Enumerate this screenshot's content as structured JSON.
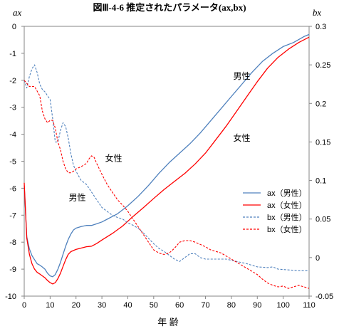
{
  "chart_data": {
    "type": "line",
    "title": "図Ⅲ-4-6 推定されたパラメータ(ax,bx)",
    "xlabel": "年 齢",
    "ylabel_left": "ax",
    "ylabel_right": "bx",
    "xlim": [
      0,
      110
    ],
    "ylim_left": [
      -10,
      0
    ],
    "ylim_right": [
      -0.05,
      0.3
    ],
    "x_ticks": [
      0,
      10,
      20,
      30,
      40,
      50,
      60,
      70,
      80,
      90,
      100,
      110
    ],
    "y_left_ticks": [
      0,
      -1,
      -2,
      -3,
      -4,
      -5,
      -6,
      -7,
      -8,
      -9,
      -10
    ],
    "y_right_ticks": [
      "0.3",
      "0.25",
      "0.2",
      "0.15",
      "0.1",
      "0.05",
      "0",
      "-0.05"
    ],
    "grid": false,
    "legend_position": "right",
    "series": [
      {
        "name": "ax（男性）",
        "axis": "left",
        "color": "#4f81bd",
        "dash": "solid",
        "points": [
          [
            0,
            -5.9
          ],
          [
            1,
            -7.8
          ],
          [
            2,
            -8.25
          ],
          [
            3,
            -8.5
          ],
          [
            4,
            -8.65
          ],
          [
            5,
            -8.8
          ],
          [
            6,
            -8.85
          ],
          [
            7,
            -8.92
          ],
          [
            8,
            -9.0
          ],
          [
            9,
            -9.15
          ],
          [
            10,
            -9.25
          ],
          [
            11,
            -9.28
          ],
          [
            12,
            -9.2
          ],
          [
            13,
            -9.0
          ],
          [
            14,
            -8.75
          ],
          [
            15,
            -8.45
          ],
          [
            16,
            -8.15
          ],
          [
            17,
            -7.9
          ],
          [
            18,
            -7.7
          ],
          [
            19,
            -7.55
          ],
          [
            20,
            -7.48
          ],
          [
            22,
            -7.42
          ],
          [
            24,
            -7.38
          ],
          [
            26,
            -7.38
          ],
          [
            28,
            -7.32
          ],
          [
            30,
            -7.25
          ],
          [
            32,
            -7.15
          ],
          [
            34,
            -7.05
          ],
          [
            36,
            -6.95
          ],
          [
            38,
            -6.8
          ],
          [
            40,
            -6.65
          ],
          [
            44,
            -6.3
          ],
          [
            48,
            -5.9
          ],
          [
            52,
            -5.45
          ],
          [
            56,
            -5.05
          ],
          [
            60,
            -4.7
          ],
          [
            64,
            -4.35
          ],
          [
            68,
            -3.95
          ],
          [
            72,
            -3.5
          ],
          [
            76,
            -3.05
          ],
          [
            80,
            -2.6
          ],
          [
            84,
            -2.15
          ],
          [
            88,
            -1.7
          ],
          [
            92,
            -1.3
          ],
          [
            96,
            -1.0
          ],
          [
            100,
            -0.75
          ],
          [
            104,
            -0.6
          ],
          [
            108,
            -0.38
          ],
          [
            110,
            -0.3
          ]
        ]
      },
      {
        "name": "ax（女性）",
        "axis": "left",
        "color": "#ff0000",
        "dash": "solid",
        "points": [
          [
            0,
            -5.8
          ],
          [
            1,
            -7.85
          ],
          [
            2,
            -8.45
          ],
          [
            3,
            -8.8
          ],
          [
            4,
            -9.0
          ],
          [
            5,
            -9.12
          ],
          [
            6,
            -9.18
          ],
          [
            7,
            -9.25
          ],
          [
            8,
            -9.32
          ],
          [
            9,
            -9.42
          ],
          [
            10,
            -9.5
          ],
          [
            11,
            -9.55
          ],
          [
            12,
            -9.5
          ],
          [
            13,
            -9.35
          ],
          [
            14,
            -9.15
          ],
          [
            15,
            -8.9
          ],
          [
            16,
            -8.65
          ],
          [
            17,
            -8.45
          ],
          [
            18,
            -8.35
          ],
          [
            20,
            -8.27
          ],
          [
            22,
            -8.22
          ],
          [
            24,
            -8.17
          ],
          [
            26,
            -8.15
          ],
          [
            28,
            -8.05
          ],
          [
            30,
            -7.92
          ],
          [
            34,
            -7.68
          ],
          [
            38,
            -7.4
          ],
          [
            42,
            -7.05
          ],
          [
            46,
            -6.72
          ],
          [
            50,
            -6.38
          ],
          [
            54,
            -6.05
          ],
          [
            58,
            -5.75
          ],
          [
            62,
            -5.45
          ],
          [
            66,
            -5.1
          ],
          [
            70,
            -4.7
          ],
          [
            74,
            -4.2
          ],
          [
            78,
            -3.7
          ],
          [
            82,
            -3.15
          ],
          [
            86,
            -2.6
          ],
          [
            90,
            -2.05
          ],
          [
            94,
            -1.55
          ],
          [
            98,
            -1.15
          ],
          [
            102,
            -0.85
          ],
          [
            106,
            -0.6
          ],
          [
            110,
            -0.4
          ]
        ]
      },
      {
        "name": "bx（男性）",
        "axis": "right",
        "color": "#4f81bd",
        "dash": "dashed",
        "points": [
          [
            0,
            0.23
          ],
          [
            1,
            0.22
          ],
          [
            2,
            0.235
          ],
          [
            3,
            0.245
          ],
          [
            4,
            0.25
          ],
          [
            5,
            0.24
          ],
          [
            6,
            0.225
          ],
          [
            7,
            0.218
          ],
          [
            8,
            0.215
          ],
          [
            9,
            0.21
          ],
          [
            10,
            0.205
          ],
          [
            11,
            0.18
          ],
          [
            12,
            0.15
          ],
          [
            13,
            0.15
          ],
          [
            14,
            0.165
          ],
          [
            15,
            0.175
          ],
          [
            16,
            0.17
          ],
          [
            17,
            0.155
          ],
          [
            18,
            0.135
          ],
          [
            19,
            0.12
          ],
          [
            20,
            0.112
          ],
          [
            22,
            0.1
          ],
          [
            24,
            0.095
          ],
          [
            26,
            0.085
          ],
          [
            28,
            0.075
          ],
          [
            30,
            0.065
          ],
          [
            32,
            0.06
          ],
          [
            34,
            0.055
          ],
          [
            36,
            0.052
          ],
          [
            38,
            0.05
          ],
          [
            40,
            0.045
          ],
          [
            42,
            0.042
          ],
          [
            44,
            0.038
          ],
          [
            46,
            0.032
          ],
          [
            48,
            0.025
          ],
          [
            50,
            0.018
          ],
          [
            52,
            0.012
          ],
          [
            54,
            0.008
          ],
          [
            56,
            0.003
          ],
          [
            58,
            -0.002
          ],
          [
            60,
            -0.005
          ],
          [
            62,
            0.0
          ],
          [
            64,
            0.005
          ],
          [
            66,
            0.005
          ],
          [
            68,
            0.0
          ],
          [
            70,
            -0.002
          ],
          [
            74,
            -0.002
          ],
          [
            78,
            -0.002
          ],
          [
            82,
            -0.005
          ],
          [
            86,
            -0.008
          ],
          [
            90,
            -0.012
          ],
          [
            94,
            -0.013
          ],
          [
            96,
            -0.012
          ],
          [
            98,
            -0.015
          ],
          [
            102,
            -0.016
          ],
          [
            106,
            -0.017
          ],
          [
            110,
            -0.017
          ]
        ]
      },
      {
        "name": "bx（女性）",
        "axis": "right",
        "color": "#ff0000",
        "dash": "dashed",
        "points": [
          [
            0,
            0.23
          ],
          [
            2,
            0.222
          ],
          [
            4,
            0.222
          ],
          [
            6,
            0.21
          ],
          [
            7,
            0.19
          ],
          [
            8,
            0.18
          ],
          [
            9,
            0.175
          ],
          [
            10,
            0.178
          ],
          [
            11,
            0.178
          ],
          [
            12,
            0.168
          ],
          [
            13,
            0.15
          ],
          [
            14,
            0.14
          ],
          [
            15,
            0.125
          ],
          [
            16,
            0.115
          ],
          [
            17,
            0.11
          ],
          [
            18,
            0.11
          ],
          [
            19,
            0.112
          ],
          [
            20,
            0.115
          ],
          [
            22,
            0.118
          ],
          [
            24,
            0.122
          ],
          [
            25,
            0.128
          ],
          [
            26,
            0.132
          ],
          [
            27,
            0.13
          ],
          [
            28,
            0.122
          ],
          [
            30,
            0.108
          ],
          [
            32,
            0.095
          ],
          [
            34,
            0.085
          ],
          [
            36,
            0.075
          ],
          [
            38,
            0.068
          ],
          [
            40,
            0.06
          ],
          [
            42,
            0.05
          ],
          [
            44,
            0.04
          ],
          [
            46,
            0.03
          ],
          [
            48,
            0.02
          ],
          [
            50,
            0.01
          ],
          [
            52,
            0.006
          ],
          [
            54,
            0.004
          ],
          [
            56,
            0.006
          ],
          [
            58,
            0.012
          ],
          [
            60,
            0.02
          ],
          [
            62,
            0.022
          ],
          [
            64,
            0.022
          ],
          [
            66,
            0.02
          ],
          [
            68,
            0.017
          ],
          [
            70,
            0.014
          ],
          [
            72,
            0.01
          ],
          [
            74,
            0.008
          ],
          [
            76,
            0.006
          ],
          [
            78,
            0.002
          ],
          [
            80,
            -0.002
          ],
          [
            82,
            -0.006
          ],
          [
            84,
            -0.01
          ],
          [
            86,
            -0.014
          ],
          [
            88,
            -0.018
          ],
          [
            90,
            -0.022
          ],
          [
            92,
            -0.028
          ],
          [
            94,
            -0.033
          ],
          [
            96,
            -0.036
          ],
          [
            98,
            -0.038
          ],
          [
            100,
            -0.037
          ],
          [
            102,
            -0.04
          ],
          [
            104,
            -0.038
          ],
          [
            106,
            -0.036
          ],
          [
            108,
            -0.038
          ],
          [
            110,
            -0.04
          ]
        ]
      }
    ],
    "annotations": [
      {
        "text": "男性",
        "x": 84,
        "y": -1.95
      },
      {
        "text": "女性",
        "x": 84,
        "y": -4.25
      },
      {
        "text": "女性",
        "x": 34.5,
        "y": -5.0
      },
      {
        "text": "男性",
        "x": 20.5,
        "y": -6.45
      }
    ]
  }
}
